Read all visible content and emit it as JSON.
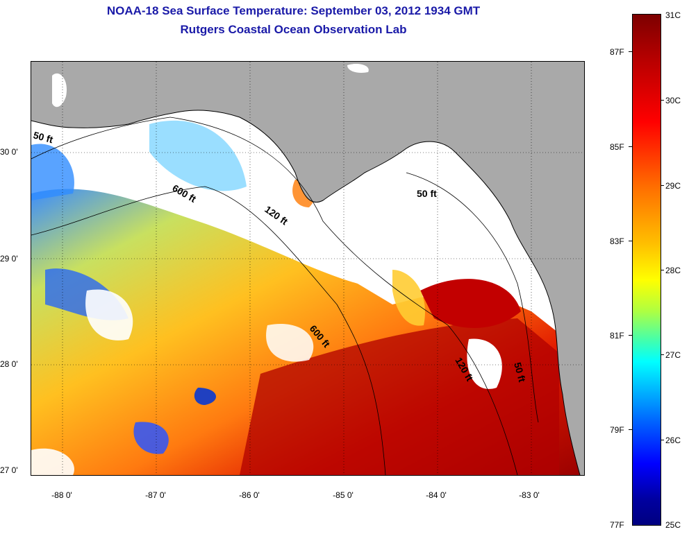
{
  "title": "NOAA-18 Sea Surface Temperature:  September 03, 2012 1934 GMT",
  "subtitle": "Rutgers Coastal Ocean Observation Lab",
  "map": {
    "lat_ticks": [
      "30 0'",
      "29 0'",
      "28 0'",
      "27 0'"
    ],
    "lon_ticks": [
      "-88 0'",
      "-87 0'",
      "-86 0'",
      "-85 0'",
      "-84 0'",
      "-83 0'"
    ],
    "contours": [
      "50 ft",
      "600 ft",
      "120 ft",
      "50 ft",
      "600 ft",
      "120 ft",
      "50 ft"
    ],
    "colors": {
      "land": "#a9a9a9",
      "cloud": "#ffffff"
    }
  },
  "colorbar": {
    "celsius": [
      "31C",
      "30C",
      "29C",
      "28C",
      "27C",
      "26C",
      "25C"
    ],
    "fahrenheit": [
      "87F",
      "85F",
      "83F",
      "81F",
      "79F",
      "77F"
    ]
  }
}
